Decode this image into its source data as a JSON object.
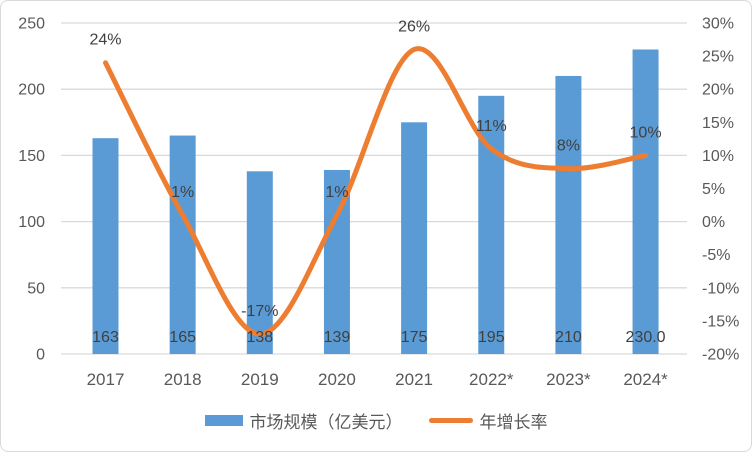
{
  "chart_data": {
    "type": "bar",
    "subtype": "combo-bar-line",
    "categories": [
      "2017",
      "2018",
      "2019",
      "2020",
      "2021",
      "2022*",
      "2023*",
      "2024*"
    ],
    "series": [
      {
        "name": "市场规模（亿美元）",
        "type": "bar",
        "axis": "left",
        "color": "#5B9BD5",
        "values": [
          163,
          165,
          138,
          139,
          175,
          195,
          210,
          230
        ],
        "labels": [
          "163",
          "165",
          "138",
          "139",
          "175",
          "195",
          "210",
          "230.0"
        ]
      },
      {
        "name": "年增长率",
        "type": "line",
        "axis": "right",
        "color": "#ED7D31",
        "values": [
          24,
          1,
          -17,
          1,
          26,
          11,
          8,
          10
        ],
        "labels": [
          "24%",
          "1%",
          "-17%",
          "1%",
          "26%",
          "11%",
          "8%",
          "10%"
        ]
      }
    ],
    "left_axis": {
      "min": 0,
      "max": 250,
      "step": 50,
      "tick_labels": [
        "0",
        "50",
        "100",
        "150",
        "200",
        "250"
      ]
    },
    "right_axis": {
      "min": -20,
      "max": 30,
      "step": 5,
      "tick_labels": [
        "-20%",
        "-15%",
        "-10%",
        "-5%",
        "0%",
        "5%",
        "10%",
        "15%",
        "20%",
        "25%",
        "30%"
      ]
    },
    "gridlines": "horizontal",
    "legend_position": "bottom",
    "title": ""
  },
  "colors": {
    "bar": "#5B9BD5",
    "line": "#ED7D31",
    "gridline": "#D9D9D9",
    "axis_text": "#595959",
    "data_label_text": "#404040",
    "background": "#FFFFFF",
    "frame_border": "#D9D9D9"
  }
}
